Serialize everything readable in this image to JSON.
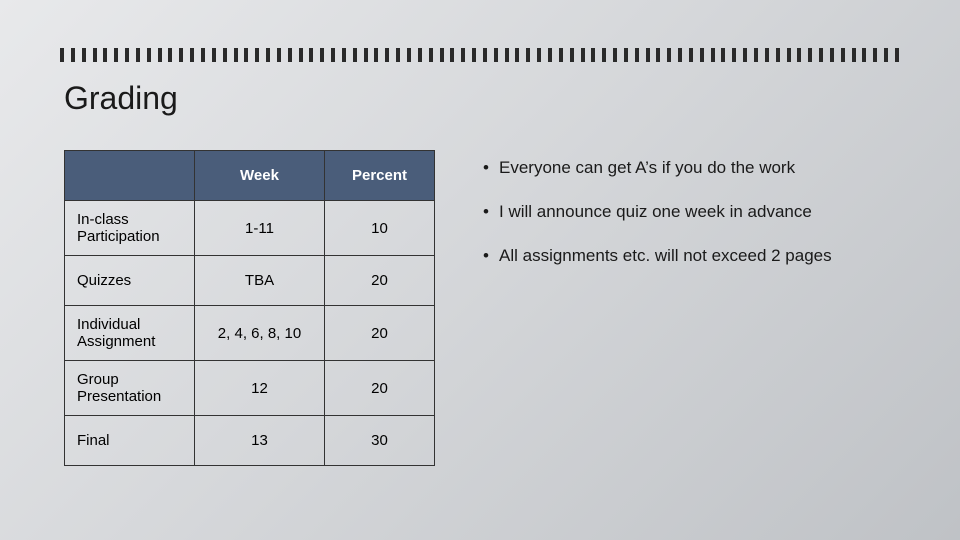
{
  "title": "Grading",
  "table": {
    "columns": [
      "",
      "Week",
      "Percent"
    ],
    "header_bg": "#4a5d7a",
    "header_color": "#ffffff",
    "border_color": "#333333",
    "rows": [
      {
        "label": "In-class Participation",
        "week": "1-11",
        "percent": "10"
      },
      {
        "label": "Quizzes",
        "week": "TBA",
        "percent": "20"
      },
      {
        "label": "Individual Assignment",
        "week": "2, 4, 6, 8, 10",
        "percent": "20"
      },
      {
        "label": "Group Presentation",
        "week": "12",
        "percent": "20"
      },
      {
        "label": "Final",
        "week": "13",
        "percent": "30"
      }
    ]
  },
  "bullets": [
    "Everyone can get A’s if you do the work",
    "I will announce quiz one week in advance",
    "All assignments etc. will not exceed 2 pages"
  ],
  "ruler": {
    "tick_count": 78,
    "tick_color": "#2a2a2a"
  },
  "background": {
    "from": "#e8e9eb",
    "mid": "#d4d6d9",
    "to": "#bfc2c6"
  },
  "fonts": {
    "title_size": 32,
    "body_size": 17,
    "table_size": 15
  }
}
